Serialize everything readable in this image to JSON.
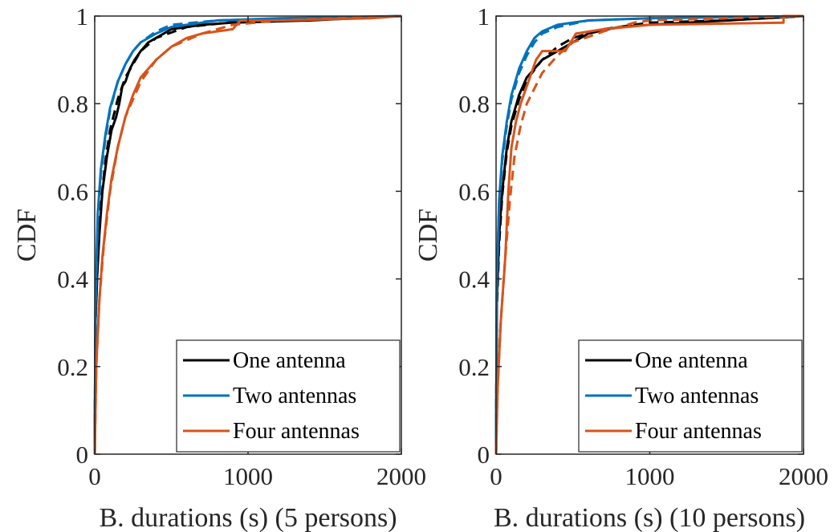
{
  "chart_data": [
    {
      "type": "line",
      "title": "",
      "xlabel": "B. durations (s) (5 persons)",
      "ylabel": "CDF",
      "xlim": [
        0,
        2000
      ],
      "ylim": [
        0,
        1
      ],
      "xticks": [
        0,
        1000,
        2000
      ],
      "xtick_labels": [
        "0",
        "1000",
        "2000"
      ],
      "yticks": [
        0,
        0.2,
        0.4,
        0.6,
        0.8,
        1
      ],
      "ytick_labels": [
        "0",
        "0.2",
        "0.4",
        "0.6",
        "0.8",
        "1"
      ],
      "grid": false,
      "legend": {
        "placement": "bottom-right",
        "entries": [
          "One antenna",
          "Two antennas",
          "Four antennas"
        ]
      },
      "series": [
        {
          "name": "One antenna",
          "style": "solid",
          "color": "#000000",
          "points": [
            [
              0,
              0
            ],
            [
              5,
              0.3
            ],
            [
              15,
              0.4
            ],
            [
              30,
              0.5
            ],
            [
              50,
              0.6
            ],
            [
              80,
              0.68
            ],
            [
              110,
              0.74
            ],
            [
              140,
              0.77
            ],
            [
              160,
              0.8
            ],
            [
              180,
              0.84
            ],
            [
              200,
              0.85
            ],
            [
              230,
              0.88
            ],
            [
              260,
              0.9
            ],
            [
              300,
              0.92
            ],
            [
              350,
              0.94
            ],
            [
              400,
              0.95
            ],
            [
              500,
              0.97
            ],
            [
              700,
              0.98
            ],
            [
              900,
              0.985
            ],
            [
              1400,
              0.99
            ],
            [
              2000,
              1
            ]
          ]
        },
        {
          "style": "dashed",
          "color": "#000000",
          "points": [
            [
              0,
              0
            ],
            [
              5,
              0.3
            ],
            [
              20,
              0.45
            ],
            [
              40,
              0.57
            ],
            [
              70,
              0.67
            ],
            [
              100,
              0.74
            ],
            [
              150,
              0.81
            ],
            [
              200,
              0.86
            ],
            [
              250,
              0.89
            ],
            [
              300,
              0.92
            ],
            [
              400,
              0.95
            ],
            [
              600,
              0.975
            ],
            [
              1000,
              0.99
            ],
            [
              2000,
              1
            ]
          ]
        },
        {
          "name": "Two antennas",
          "style": "solid",
          "color": "#0072BD",
          "points": [
            [
              0,
              0
            ],
            [
              5,
              0.35
            ],
            [
              20,
              0.55
            ],
            [
              40,
              0.65
            ],
            [
              70,
              0.73
            ],
            [
              100,
              0.79
            ],
            [
              150,
              0.85
            ],
            [
              200,
              0.89
            ],
            [
              250,
              0.92
            ],
            [
              300,
              0.94
            ],
            [
              400,
              0.96
            ],
            [
              500,
              0.975
            ],
            [
              800,
              0.99
            ],
            [
              1200,
              0.995
            ],
            [
              2000,
              1
            ]
          ]
        },
        {
          "style": "dashed",
          "color": "#0072BD",
          "points": [
            [
              0,
              0
            ],
            [
              5,
              0.33
            ],
            [
              20,
              0.53
            ],
            [
              40,
              0.64
            ],
            [
              70,
              0.72
            ],
            [
              100,
              0.785
            ],
            [
              150,
              0.85
            ],
            [
              200,
              0.89
            ],
            [
              250,
              0.92
            ],
            [
              300,
              0.94
            ],
            [
              400,
              0.965
            ],
            [
              500,
              0.98
            ],
            [
              800,
              0.99
            ],
            [
              2000,
              1
            ]
          ]
        },
        {
          "name": "Four antennas",
          "style": "solid",
          "color": "#D95319",
          "points": [
            [
              0,
              0
            ],
            [
              10,
              0.2
            ],
            [
              30,
              0.35
            ],
            [
              50,
              0.45
            ],
            [
              80,
              0.55
            ],
            [
              110,
              0.63
            ],
            [
              150,
              0.7
            ],
            [
              200,
              0.77
            ],
            [
              250,
              0.82
            ],
            [
              300,
              0.86
            ],
            [
              400,
              0.9
            ],
            [
              500,
              0.93
            ],
            [
              600,
              0.95
            ],
            [
              700,
              0.96
            ],
            [
              900,
              0.97
            ],
            [
              950,
              0.99
            ],
            [
              1200,
              0.99
            ],
            [
              1800,
              0.995
            ],
            [
              2000,
              1
            ]
          ]
        },
        {
          "style": "dashed",
          "color": "#D95319",
          "points": [
            [
              0,
              0
            ],
            [
              10,
              0.2
            ],
            [
              30,
              0.35
            ],
            [
              60,
              0.48
            ],
            [
              100,
              0.6
            ],
            [
              150,
              0.7
            ],
            [
              200,
              0.77
            ],
            [
              300,
              0.85
            ],
            [
              400,
              0.9
            ],
            [
              500,
              0.93
            ],
            [
              700,
              0.96
            ],
            [
              900,
              0.98
            ],
            [
              1200,
              0.99
            ],
            [
              2000,
              1
            ]
          ]
        }
      ]
    },
    {
      "type": "line",
      "title": "",
      "xlabel": "B. durations (s) (10 persons)",
      "ylabel": "CDF",
      "xlim": [
        0,
        2000
      ],
      "ylim": [
        0,
        1
      ],
      "xticks": [
        0,
        1000,
        2000
      ],
      "xtick_labels": [
        "0",
        "1000",
        "2000"
      ],
      "yticks": [
        0,
        0.2,
        0.4,
        0.6,
        0.8,
        1
      ],
      "ytick_labels": [
        "0",
        "0.2",
        "0.4",
        "0.6",
        "0.8",
        "1"
      ],
      "grid": false,
      "legend": {
        "placement": "bottom-right",
        "entries": [
          "One antenna",
          "Two antennas",
          "Four antennas"
        ]
      },
      "series": [
        {
          "name": "One antenna",
          "style": "solid",
          "color": "#000000",
          "points": [
            [
              0,
              0
            ],
            [
              5,
              0.35
            ],
            [
              20,
              0.5
            ],
            [
              40,
              0.6
            ],
            [
              70,
              0.7
            ],
            [
              100,
              0.76
            ],
            [
              150,
              0.82
            ],
            [
              200,
              0.86
            ],
            [
              250,
              0.88
            ],
            [
              300,
              0.9
            ],
            [
              400,
              0.92
            ],
            [
              500,
              0.94
            ],
            [
              600,
              0.96
            ],
            [
              800,
              0.975
            ],
            [
              1000,
              0.98
            ],
            [
              1500,
              0.99
            ],
            [
              2000,
              1
            ]
          ]
        },
        {
          "style": "dashed",
          "color": "#000000",
          "points": [
            [
              0,
              0
            ],
            [
              5,
              0.33
            ],
            [
              20,
              0.48
            ],
            [
              40,
              0.59
            ],
            [
              70,
              0.69
            ],
            [
              100,
              0.75
            ],
            [
              150,
              0.81
            ],
            [
              200,
              0.855
            ],
            [
              300,
              0.9
            ],
            [
              400,
              0.93
            ],
            [
              500,
              0.95
            ],
            [
              700,
              0.97
            ],
            [
              1000,
              0.985
            ],
            [
              1500,
              0.99
            ],
            [
              2000,
              1
            ]
          ]
        },
        {
          "name": "Two antennas",
          "style": "solid",
          "color": "#0072BD",
          "points": [
            [
              0,
              0
            ],
            [
              5,
              0.4
            ],
            [
              20,
              0.58
            ],
            [
              40,
              0.68
            ],
            [
              70,
              0.76
            ],
            [
              100,
              0.82
            ],
            [
              150,
              0.88
            ],
            [
              200,
              0.92
            ],
            [
              250,
              0.95
            ],
            [
              300,
              0.965
            ],
            [
              400,
              0.98
            ],
            [
              600,
              0.99
            ],
            [
              1000,
              0.995
            ],
            [
              2000,
              1
            ]
          ]
        },
        {
          "style": "dashed",
          "color": "#0072BD",
          "points": [
            [
              0,
              0
            ],
            [
              5,
              0.38
            ],
            [
              20,
              0.57
            ],
            [
              40,
              0.67
            ],
            [
              70,
              0.75
            ],
            [
              100,
              0.81
            ],
            [
              150,
              0.87
            ],
            [
              200,
              0.91
            ],
            [
              250,
              0.94
            ],
            [
              300,
              0.96
            ],
            [
              400,
              0.975
            ],
            [
              600,
              0.99
            ],
            [
              1000,
              0.995
            ],
            [
              2000,
              1
            ]
          ]
        },
        {
          "name": "Four antennas",
          "style": "solid",
          "color": "#D95319",
          "points": [
            [
              0,
              0
            ],
            [
              10,
              0.15
            ],
            [
              30,
              0.3
            ],
            [
              60,
              0.45
            ],
            [
              80,
              0.6
            ],
            [
              100,
              0.7
            ],
            [
              130,
              0.76
            ],
            [
              160,
              0.8
            ],
            [
              200,
              0.84
            ],
            [
              260,
              0.9
            ],
            [
              300,
              0.92
            ],
            [
              450,
              0.92
            ],
            [
              520,
              0.96
            ],
            [
              700,
              0.97
            ],
            [
              1000,
              0.98
            ],
            [
              1870,
              0.985
            ],
            [
              1870,
              1
            ],
            [
              2000,
              1
            ]
          ]
        },
        {
          "style": "dashed",
          "color": "#D95319",
          "points": [
            [
              0,
              0
            ],
            [
              10,
              0.15
            ],
            [
              30,
              0.3
            ],
            [
              60,
              0.45
            ],
            [
              90,
              0.58
            ],
            [
              120,
              0.68
            ],
            [
              160,
              0.75
            ],
            [
              200,
              0.8
            ],
            [
              300,
              0.87
            ],
            [
              400,
              0.91
            ],
            [
              500,
              0.94
            ],
            [
              700,
              0.965
            ],
            [
              900,
              0.985
            ],
            [
              1000,
              0.99
            ],
            [
              2000,
              1
            ]
          ]
        }
      ]
    }
  ]
}
